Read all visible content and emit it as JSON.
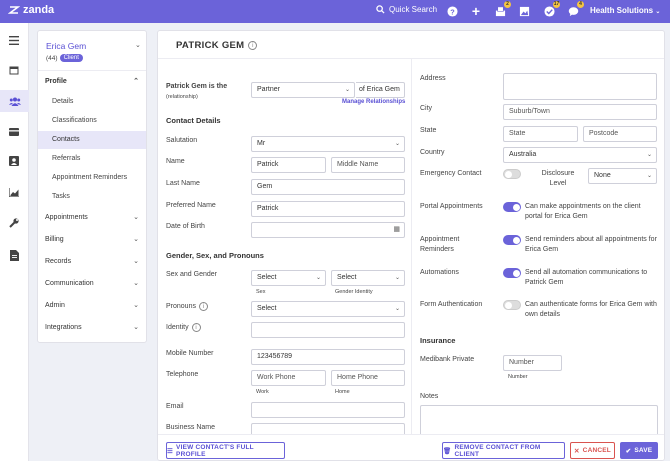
{
  "topbar": {
    "logo_text": "zanda",
    "quick_search": "Quick Search",
    "badges": {
      "ballot": "2",
      "tasks": "17",
      "chat": "4"
    },
    "account": "Health Solutions"
  },
  "sidebar": {
    "client_name": "Erica Gem",
    "client_count": "(44)",
    "client_badge": "Client",
    "profile_label": "Profile",
    "profile_items": [
      "Details",
      "Classifications",
      "Contacts",
      "Referrals",
      "Appointment Reminders",
      "Tasks"
    ],
    "sections": [
      "Appointments",
      "Billing",
      "Records",
      "Communication",
      "Admin",
      "Integrations"
    ]
  },
  "page": {
    "title": "PATRICK GEM",
    "relationship": {
      "label": "Patrick Gem is the",
      "sublabel": "(relationship)",
      "value": "Partner",
      "suffix": "of Erica Gem",
      "manage_link": "Manage Relationships"
    },
    "contact_details": {
      "heading": "Contact Details",
      "salutation_label": "Salutation",
      "salutation_value": "Mr",
      "name_label": "Name",
      "first_name": "Patrick",
      "middle_placeholder": "Middle Name",
      "last_name_label": "Last Name",
      "last_name": "Gem",
      "preferred_label": "Preferred Name",
      "preferred_value": "Patrick",
      "dob_label": "Date of Birth"
    },
    "gender": {
      "heading": "Gender, Sex, and Pronouns",
      "sg_label": "Sex and Gender",
      "sex_value": "Select",
      "sex_sub": "Sex",
      "gender_value": "Select",
      "gender_sub": "Gender Identity",
      "pronouns_label": "Pronouns",
      "pronouns_value": "Select",
      "identity_label": "Identity"
    },
    "contact": {
      "mobile_label": "Mobile Number",
      "mobile_value": "123456789",
      "telephone_label": "Telephone",
      "work_placeholder": "Work Phone",
      "work_sub": "Work",
      "home_placeholder": "Home Phone",
      "home_sub": "Home",
      "email_label": "Email",
      "business_label": "Business Name"
    },
    "address": {
      "address_label": "Address",
      "city_label": "City",
      "city_placeholder": "Suburb/Town",
      "state_label": "State",
      "state_placeholder": "State",
      "postcode_placeholder": "Postcode",
      "country_label": "Country",
      "country_value": "Australia",
      "emergency_label": "Emergency Contact",
      "disclosure_label": "Disclosure Level",
      "disclosure_value": "None"
    },
    "toggles": {
      "portal_label": "Portal Appointments",
      "portal_text": "Can make appointments on the client portal for Erica Gem",
      "reminders_label": "Appointment Reminders",
      "reminders_text": "Send reminders about all appointments for Erica Gem",
      "automations_label": "Automations",
      "automations_text": "Send all automation communications to Patrick Gem",
      "formauth_label": "Form Authentication",
      "formauth_text": "Can authenticate forms for Erica Gem with own details"
    },
    "insurance": {
      "heading": "Insurance",
      "medibank_label": "Medibank Private",
      "number_placeholder": "Number",
      "number_sub": "Number",
      "notes_label": "Notes"
    }
  },
  "footer": {
    "view_profile": "VIEW CONTACT'S FULL PROFILE",
    "remove": "REMOVE CONTACT FROM CLIENT",
    "cancel": "CANCEL",
    "save": "SAVE"
  },
  "colors": {
    "accent": "#6b63d9",
    "danger": "#d9534f"
  }
}
